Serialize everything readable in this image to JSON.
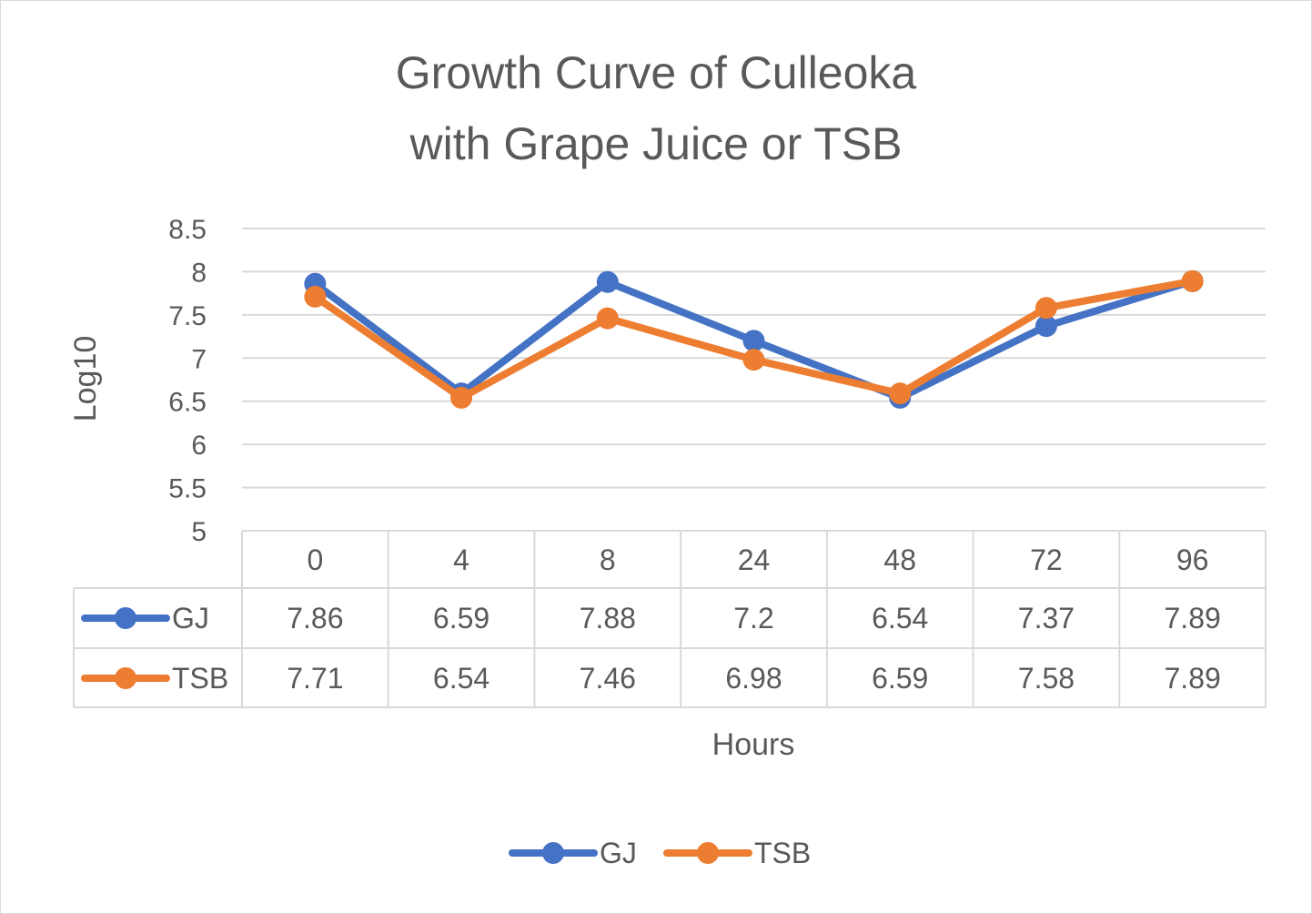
{
  "chart_data": {
    "type": "line",
    "title": [
      "Growth Curve of Culleoka",
      "with Grape Juice or TSB"
    ],
    "xlabel": "Hours",
    "ylabel": "Log10",
    "categories": [
      "0",
      "4",
      "8",
      "24",
      "48",
      "72",
      "96"
    ],
    "ylim": [
      5,
      8.5
    ],
    "yticks": [
      "8.5",
      "8",
      "7.5",
      "7",
      "6.5",
      "6",
      "5.5",
      "5"
    ],
    "grid": true,
    "legend_position": "bottom",
    "data_table": true,
    "series": [
      {
        "name": "GJ",
        "color": "#4472C4",
        "values": [
          7.86,
          6.59,
          7.88,
          7.2,
          6.54,
          7.37,
          7.89
        ],
        "labels": [
          "7.86",
          "6.59",
          "7.88",
          "7.2",
          "6.54",
          "7.37",
          "7.89"
        ]
      },
      {
        "name": "TSB",
        "color": "#ED7D31",
        "values": [
          7.71,
          6.54,
          7.46,
          6.98,
          6.59,
          7.58,
          7.89
        ],
        "labels": [
          "7.71",
          "6.54",
          "7.46",
          "6.98",
          "6.59",
          "7.58",
          "7.89"
        ]
      }
    ]
  }
}
